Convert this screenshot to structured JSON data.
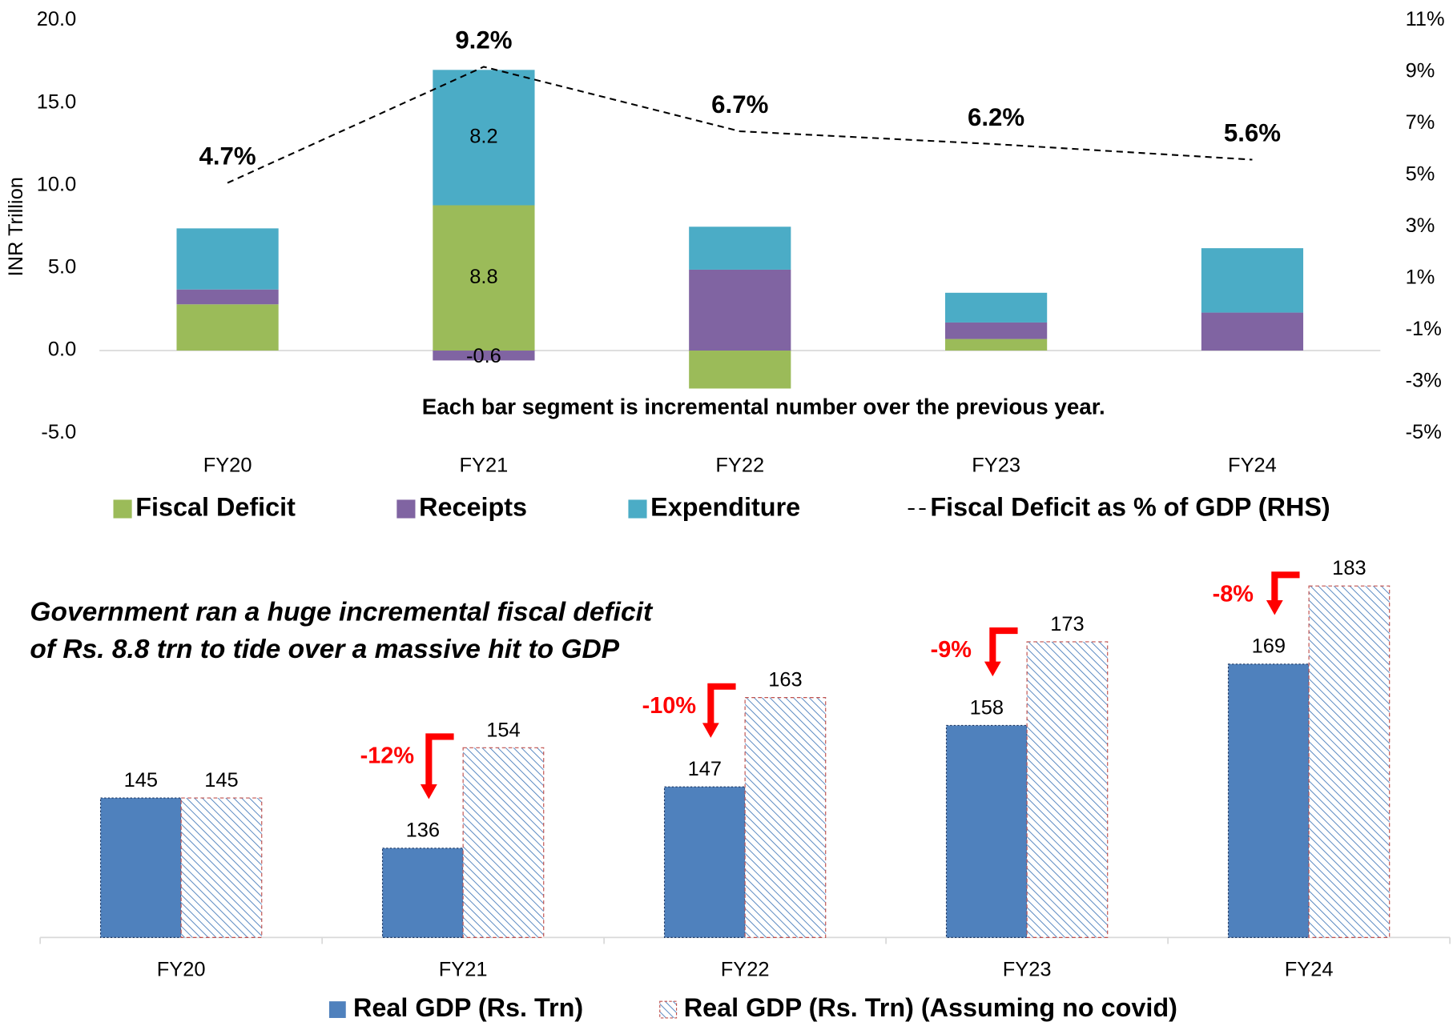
{
  "chart_data": [
    {
      "type": "bar",
      "stacked": true,
      "y_label": "INR Trillion",
      "annotation": "Each bar segment is incremental number over the previous year.",
      "categories": [
        "FY20",
        "FY21",
        "FY22",
        "FY23",
        "FY24"
      ],
      "series": [
        {
          "name": "Fiscal Deficit",
          "color": "#9bbb59",
          "values": [
            2.8,
            8.8,
            -2.3,
            0.7,
            0
          ],
          "value_labels": [
            null,
            "8.8",
            null,
            null,
            null
          ]
        },
        {
          "name": "Receipts",
          "color": "#8064a2",
          "values": [
            0.9,
            -0.6,
            4.9,
            1.0,
            2.3
          ],
          "value_labels": [
            null,
            "-0.6",
            null,
            null,
            null
          ]
        },
        {
          "name": "Expenditure",
          "color": "#4bacc6",
          "values": [
            3.7,
            8.2,
            2.6,
            1.8,
            3.9
          ],
          "value_labels": [
            null,
            "8.2",
            null,
            null,
            null
          ]
        },
        {
          "name": "Fiscal Deficit as % of GDP (RHS)",
          "type": "line",
          "axis": "y2",
          "color": "#000000",
          "dashed": true,
          "values": [
            4.7,
            9.2,
            6.7,
            6.2,
            5.6
          ],
          "value_labels": [
            "4.7%",
            "9.2%",
            "6.7%",
            "6.2%",
            "5.6%"
          ]
        }
      ],
      "ylim": [
        -5,
        20
      ],
      "yticks": [
        {
          "value": -5,
          "label": "-5.0"
        },
        {
          "value": 0,
          "label": "0.0"
        },
        {
          "value": 5,
          "label": "5.0"
        },
        {
          "value": 10,
          "label": "10.0"
        },
        {
          "value": 15,
          "label": "15.0"
        },
        {
          "value": 20,
          "label": "20.0"
        }
      ],
      "y2lim": [
        -5,
        11
      ],
      "y2ticks": [
        {
          "value": -5,
          "label": "-5%"
        },
        {
          "value": -3,
          "label": "-3%"
        },
        {
          "value": -1,
          "label": "-1%"
        },
        {
          "value": 1,
          "label": "1%"
        },
        {
          "value": 3,
          "label": "3%"
        },
        {
          "value": 5,
          "label": "5%"
        },
        {
          "value": 7,
          "label": "7%"
        },
        {
          "value": 9,
          "label": "9%"
        },
        {
          "value": 11,
          "label": "11%"
        }
      ]
    },
    {
      "type": "bar",
      "annotation": [
        "Government ran a huge incremental fiscal deficit",
        "of Rs. 8.8 trn to tide over a massive hit to GDP"
      ],
      "categories": [
        "FY20",
        "FY21",
        "FY22",
        "FY23",
        "FY24"
      ],
      "series": [
        {
          "name": "Real GDP (Rs. Trn)",
          "color": "#4f81bd",
          "values": [
            145,
            136,
            147,
            158,
            169
          ]
        },
        {
          "name": "Real GDP (Rs. Trn) (Assuming no covid)",
          "color": "#4f81bd",
          "hatch": true,
          "border": "#c0504d",
          "values": [
            145,
            154,
            163,
            173,
            183
          ]
        }
      ],
      "gap_labels": [
        null,
        "-12%",
        "-10%",
        "-9%",
        "-8%"
      ],
      "gap_color": "#ff0000",
      "ylim": [
        120,
        190
      ]
    }
  ]
}
